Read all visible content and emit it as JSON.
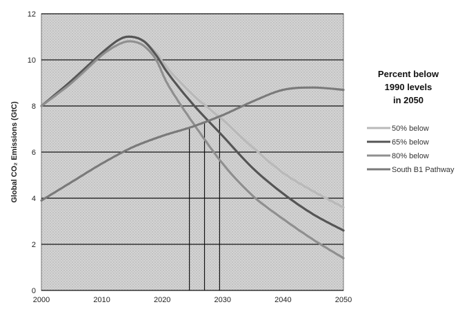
{
  "chart_data": {
    "type": "line",
    "title": "",
    "xlabel": "",
    "ylabel": "Global CO₂ Emissions (GtC)",
    "xlim": [
      2000,
      2050
    ],
    "ylim": [
      0,
      12
    ],
    "x_ticks": [
      "2000",
      "2010",
      "2020",
      "2030",
      "2040",
      "2050"
    ],
    "y_ticks": [
      "0",
      "2",
      "4",
      "6",
      "8",
      "10",
      "12"
    ],
    "grid": "horizontal",
    "legend": {
      "title": [
        "Percent below",
        "1990 levels",
        "in 2050"
      ],
      "placement": "right"
    },
    "series": [
      {
        "name": "50% below",
        "color": "#b9b9b9",
        "points": [
          [
            2000,
            8.0
          ],
          [
            2005,
            9.1
          ],
          [
            2010,
            10.3
          ],
          [
            2013,
            10.9
          ],
          [
            2015,
            11.0
          ],
          [
            2017,
            10.8
          ],
          [
            2019,
            10.3
          ],
          [
            2021,
            9.6
          ],
          [
            2025,
            8.5
          ],
          [
            2030,
            7.4
          ],
          [
            2035,
            6.2
          ],
          [
            2040,
            5.1
          ],
          [
            2045,
            4.3
          ],
          [
            2050,
            3.6
          ]
        ]
      },
      {
        "name": "65% below",
        "color": "#555555",
        "points": [
          [
            2000,
            8.0
          ],
          [
            2005,
            9.1
          ],
          [
            2010,
            10.3
          ],
          [
            2013,
            10.9
          ],
          [
            2015,
            11.0
          ],
          [
            2017,
            10.8
          ],
          [
            2019,
            10.2
          ],
          [
            2021,
            9.4
          ],
          [
            2025,
            8.1
          ],
          [
            2030,
            6.7
          ],
          [
            2035,
            5.3
          ],
          [
            2040,
            4.2
          ],
          [
            2045,
            3.3
          ],
          [
            2050,
            2.6
          ]
        ]
      },
      {
        "name": "80% below",
        "color": "#8f8f8f",
        "points": [
          [
            2000,
            8.0
          ],
          [
            2005,
            9.0
          ],
          [
            2010,
            10.2
          ],
          [
            2013,
            10.7
          ],
          [
            2015,
            10.8
          ],
          [
            2017,
            10.6
          ],
          [
            2019,
            10.0
          ],
          [
            2021,
            8.9
          ],
          [
            2025,
            7.3
          ],
          [
            2030,
            5.5
          ],
          [
            2035,
            4.1
          ],
          [
            2040,
            3.1
          ],
          [
            2045,
            2.2
          ],
          [
            2050,
            1.4
          ]
        ]
      },
      {
        "name": "South B1 Pathway",
        "color": "#7a7a7a",
        "points": [
          [
            2000,
            3.9
          ],
          [
            2005,
            4.7
          ],
          [
            2010,
            5.5
          ],
          [
            2015,
            6.2
          ],
          [
            2020,
            6.7
          ],
          [
            2025,
            7.1
          ],
          [
            2030,
            7.6
          ],
          [
            2035,
            8.2
          ],
          [
            2040,
            8.7
          ],
          [
            2045,
            8.8
          ],
          [
            2050,
            8.7
          ]
        ]
      }
    ],
    "intersections": [
      {
        "x": 2024.5,
        "y": 7.1
      },
      {
        "x": 2027,
        "y": 7.3
      },
      {
        "x": 2029.5,
        "y": 7.5
      }
    ]
  }
}
